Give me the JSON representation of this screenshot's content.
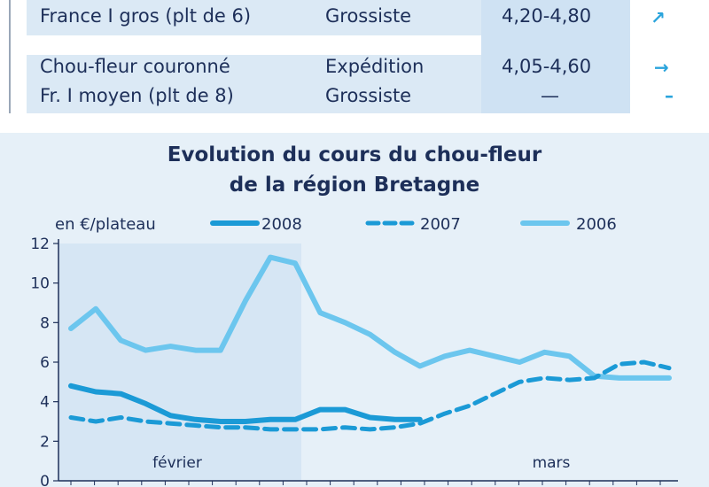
{
  "table": {
    "rows": [
      {
        "product": "France I gros (plt de 6)",
        "stage": "Grossiste",
        "price": "4,20-4,80",
        "trend": "↗"
      },
      {
        "product": "Chou-fleur couronné",
        "stage": "Expédition",
        "price": "4,05-4,60",
        "trend": "→"
      },
      {
        "product": "Fr. I moyen (plt de 8)",
        "stage": "Grossiste",
        "price": "—",
        "trend": "–"
      }
    ]
  },
  "chart_data": {
    "type": "line",
    "title_line1": "Evolution du cours du chou-fleur",
    "title_line2": "de la région Bretagne",
    "ylabel": "en €/plateau",
    "ylim": [
      0,
      12
    ],
    "yticks": [
      "0",
      "2",
      "4",
      "6",
      "8",
      "10",
      "12"
    ],
    "month_labels": [
      "février",
      "mars"
    ],
    "series": [
      {
        "name": "2008",
        "style": "solid-thick",
        "color": "#1b9ad6",
        "values": [
          4.8,
          4.5,
          4.4,
          3.9,
          3.3,
          3.1,
          3.0,
          3.0,
          3.1,
          3.1,
          3.6,
          3.6,
          3.2,
          3.1,
          3.1
        ]
      },
      {
        "name": "2007",
        "style": "dashed",
        "color": "#1b9ad6",
        "values": [
          3.2,
          3.0,
          3.2,
          3.0,
          2.9,
          2.8,
          2.7,
          2.7,
          2.6,
          2.6,
          2.6,
          2.7,
          2.6,
          2.7,
          2.9,
          3.4,
          3.8,
          4.4,
          5.0,
          5.2,
          5.1,
          5.2,
          5.9,
          6.0,
          5.7
        ]
      },
      {
        "name": "2006",
        "style": "solid",
        "color": "#6cc6ee",
        "values": [
          7.7,
          8.7,
          7.1,
          6.6,
          6.8,
          6.6,
          6.6,
          9.1,
          11.3,
          11.0,
          8.5,
          8.0,
          7.4,
          6.5,
          5.8,
          6.3,
          6.6,
          6.3,
          6.0,
          6.5,
          6.3,
          5.3,
          5.2,
          5.2,
          5.2
        ]
      }
    ]
  }
}
